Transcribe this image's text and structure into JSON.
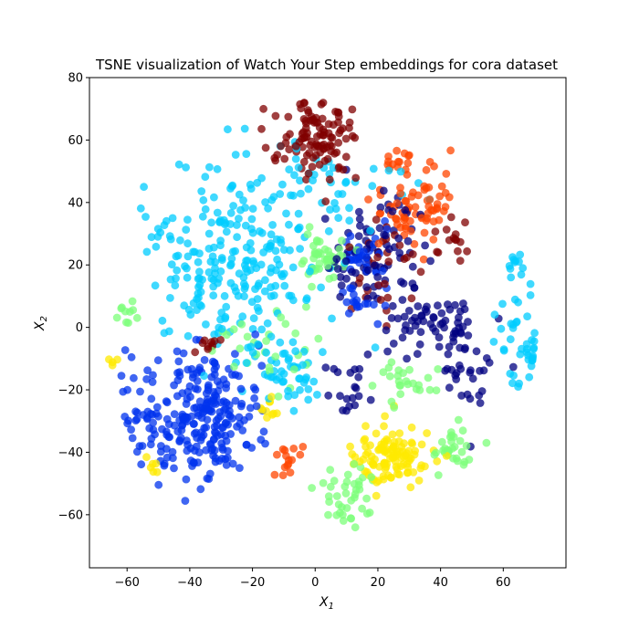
{
  "chart_data": {
    "type": "scatter",
    "title": "TSNE visualization of Watch Your Step embeddings for cora dataset",
    "xlabel": "X",
    "xlabel_sub": "1",
    "ylabel": "X",
    "ylabel_sub": "2",
    "xlim": [
      -72,
      80
    ],
    "ylim": [
      -77,
      80
    ],
    "xticks": [
      -60,
      -40,
      -20,
      0,
      20,
      40,
      60
    ],
    "yticks": [
      -60,
      -40,
      -20,
      0,
      20,
      40,
      60,
      80
    ],
    "grid": false,
    "legend": "none",
    "marker_opacity": 0.75,
    "seed": 20240601,
    "clusters": [
      {
        "color": "#800000",
        "cx": 2,
        "cy": 60,
        "sx": 7,
        "sy": 6,
        "n": 110
      },
      {
        "color": "#800000",
        "cx": 22,
        "cy": 20,
        "sx": 6,
        "sy": 8,
        "n": 30
      },
      {
        "color": "#800000",
        "cx": 44,
        "cy": 30,
        "sx": 4,
        "sy": 4,
        "n": 15
      },
      {
        "color": "#800000",
        "cx": -35,
        "cy": -5,
        "sx": 3,
        "sy": 2,
        "n": 10
      },
      {
        "color": "#ff4500",
        "cx": 32,
        "cy": 38,
        "sx": 6,
        "sy": 6,
        "n": 70
      },
      {
        "color": "#ff4500",
        "cx": 26,
        "cy": 52,
        "sx": 3,
        "sy": 3,
        "n": 15
      },
      {
        "color": "#ff4500",
        "cx": -8,
        "cy": -42,
        "sx": 3,
        "sy": 3,
        "n": 15
      },
      {
        "color": "#000080",
        "cx": 22,
        "cy": 25,
        "sx": 8,
        "sy": 10,
        "n": 80
      },
      {
        "color": "#000080",
        "cx": 38,
        "cy": 0,
        "sx": 10,
        "sy": 6,
        "n": 60
      },
      {
        "color": "#000080",
        "cx": 48,
        "cy": -12,
        "sx": 4,
        "sy": 8,
        "n": 30
      },
      {
        "color": "#000080",
        "cx": 10,
        "cy": -20,
        "sx": 4,
        "sy": 6,
        "n": 20
      },
      {
        "color": "#0033ee",
        "cx": -35,
        "cy": -28,
        "sx": 9,
        "sy": 10,
        "n": 230
      },
      {
        "color": "#0033ee",
        "cx": -55,
        "cy": -28,
        "sx": 4,
        "sy": 10,
        "n": 35
      },
      {
        "color": "#0033ee",
        "cx": 15,
        "cy": 25,
        "sx": 4,
        "sy": 4,
        "n": 30
      },
      {
        "color": "#0033ee",
        "cx": 15,
        "cy": 10,
        "sx": 4,
        "sy": 4,
        "n": 20
      },
      {
        "color": "#00ccff",
        "cx": -25,
        "cy": 20,
        "sx": 13,
        "sy": 15,
        "n": 250
      },
      {
        "color": "#00ccff",
        "cx": 5,
        "cy": 45,
        "sx": 12,
        "sy": 6,
        "n": 40
      },
      {
        "color": "#00ccff",
        "cx": 65,
        "cy": 0,
        "sx": 4,
        "sy": 10,
        "n": 30
      },
      {
        "color": "#00ccff",
        "cx": 70,
        "cy": -10,
        "sx": 2,
        "sy": 2,
        "n": 12
      },
      {
        "color": "#00ccff",
        "cx": -8,
        "cy": -15,
        "sx": 7,
        "sy": 5,
        "n": 40
      },
      {
        "color": "#00ccff",
        "cx": 64,
        "cy": 20,
        "sx": 2,
        "sy": 2,
        "n": 10
      },
      {
        "color": "#7cff79",
        "cx": 2,
        "cy": 22,
        "sx": 4,
        "sy": 4,
        "n": 45
      },
      {
        "color": "#7cff79",
        "cx": 10,
        "cy": -55,
        "sx": 5,
        "sy": 6,
        "n": 40
      },
      {
        "color": "#7cff79",
        "cx": 44,
        "cy": -38,
        "sx": 4,
        "sy": 4,
        "n": 30
      },
      {
        "color": "#7cff79",
        "cx": 28,
        "cy": -18,
        "sx": 5,
        "sy": 4,
        "n": 25
      },
      {
        "color": "#7cff79",
        "cx": -60,
        "cy": 5,
        "sx": 2,
        "sy": 2,
        "n": 10
      },
      {
        "color": "#7cff79",
        "cx": -15,
        "cy": -5,
        "sx": 8,
        "sy": 6,
        "n": 30
      },
      {
        "color": "#ffea00",
        "cx": 25,
        "cy": -42,
        "sx": 6,
        "sy": 5,
        "n": 110
      },
      {
        "color": "#ffea00",
        "cx": -50,
        "cy": -45,
        "sx": 2,
        "sy": 2,
        "n": 6
      },
      {
        "color": "#ffea00",
        "cx": -15,
        "cy": -28,
        "sx": 3,
        "sy": 3,
        "n": 10
      },
      {
        "color": "#ffea00",
        "cx": -65,
        "cy": -11,
        "sx": 1,
        "sy": 1,
        "n": 4
      }
    ]
  }
}
